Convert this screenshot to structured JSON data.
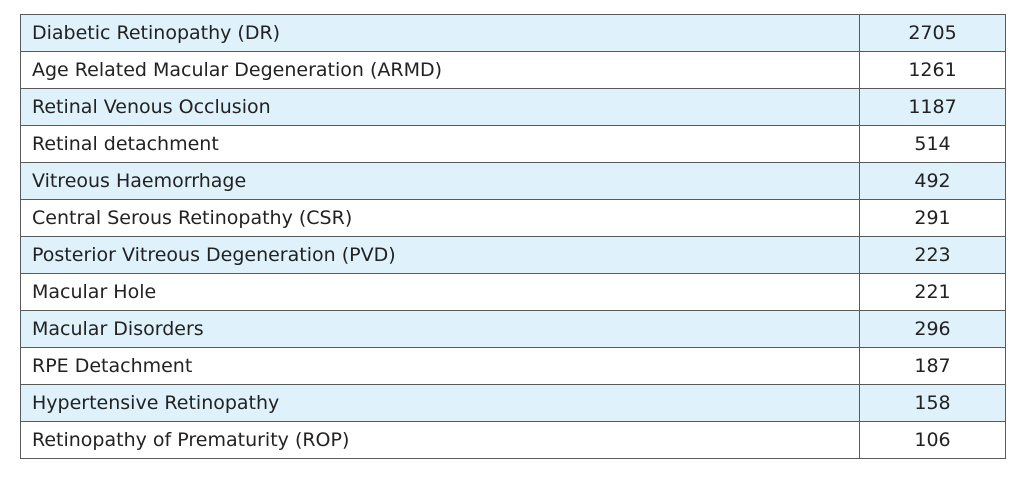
{
  "table": {
    "rows": [
      {
        "condition": "Diabetic Retinopathy (DR)",
        "count": "2705"
      },
      {
        "condition": "Age Related Macular Degeneration (ARMD)",
        "count": "1261"
      },
      {
        "condition": "Retinal Venous Occlusion",
        "count": "1187"
      },
      {
        "condition": "Retinal detachment",
        "count": "514"
      },
      {
        "condition": "Vitreous Haemorrhage",
        "count": "492"
      },
      {
        "condition": "Central Serous Retinopathy (CSR)",
        "count": "291"
      },
      {
        "condition": "Posterior Vitreous Degeneration (PVD)",
        "count": "223"
      },
      {
        "condition": "Macular Hole",
        "count": "221"
      },
      {
        "condition": "Macular Disorders",
        "count": "296"
      },
      {
        "condition": "RPE Detachment",
        "count": "187"
      },
      {
        "condition": "Hypertensive Retinopathy",
        "count": "158"
      },
      {
        "condition": "Retinopathy of Prematurity (ROP)",
        "count": "106"
      }
    ]
  },
  "colors": {
    "shaded_row": "#dff1fa",
    "border": "#5a5a5a",
    "text": "#222222"
  }
}
